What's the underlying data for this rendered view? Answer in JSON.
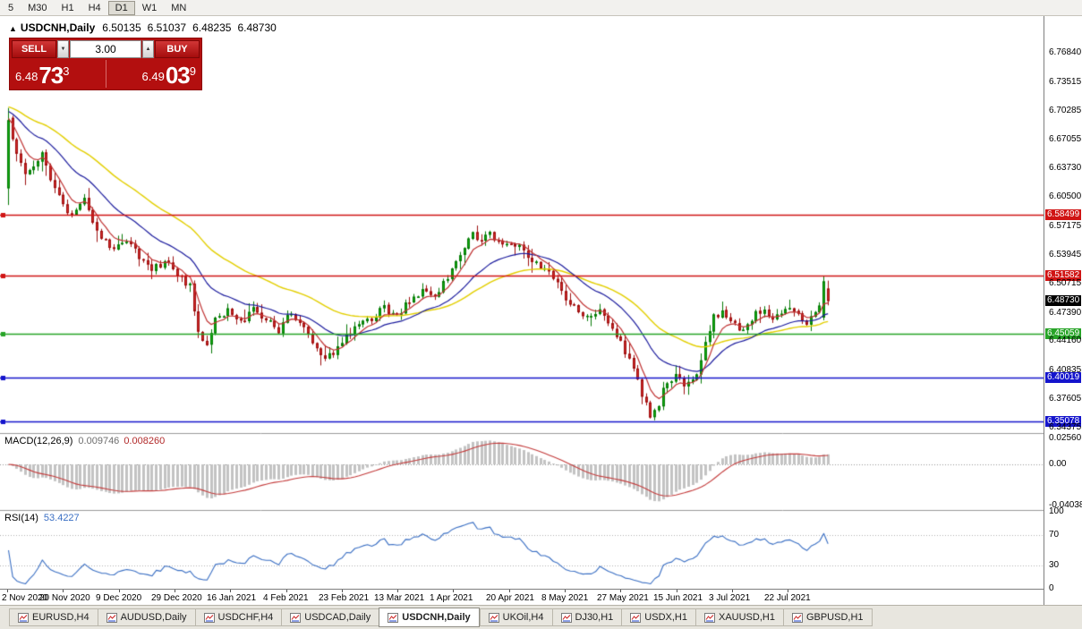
{
  "toolbar": {
    "timeframes": [
      "5",
      "M30",
      "H1",
      "H4",
      "D1",
      "W1",
      "MN"
    ],
    "active": "D1"
  },
  "chart": {
    "title": "USDCNH,Daily",
    "ohlc": {
      "open": "6.50135",
      "high": "6.51037",
      "low": "6.48235",
      "close": "6.48730"
    }
  },
  "icons": {
    "collapse": "▲",
    "volume_down": "▼",
    "volume_up": "▲"
  },
  "trade_widget": {
    "sell_label": "SELL",
    "buy_label": "BUY",
    "volume": "3.00",
    "sell_price": {
      "prefix": "6.48",
      "big": "73",
      "sup": "3"
    },
    "buy_price": {
      "prefix": "6.49",
      "big": "03",
      "sup": "9"
    }
  },
  "price_axis": {
    "labels": [
      {
        "text": "6.76840",
        "price": 6.7684,
        "style": "normal"
      },
      {
        "text": "6.73515",
        "price": 6.73515,
        "style": "normal"
      },
      {
        "text": "6.70285",
        "price": 6.70285,
        "style": "normal"
      },
      {
        "text": "6.67055",
        "price": 6.67055,
        "style": "normal"
      },
      {
        "text": "6.63730",
        "price": 6.6373,
        "style": "normal"
      },
      {
        "text": "6.60500",
        "price": 6.605,
        "style": "normal"
      },
      {
        "text": "6.58499",
        "price": 6.58499,
        "style": "red"
      },
      {
        "text": "6.57175",
        "price": 6.57175,
        "style": "normal"
      },
      {
        "text": "6.53945",
        "price": 6.53945,
        "style": "normal"
      },
      {
        "text": "6.51582",
        "price": 6.51582,
        "style": "red"
      },
      {
        "text": "6.50715",
        "price": 6.50715,
        "style": "normal"
      },
      {
        "text": "6.48730",
        "price": 6.4873,
        "style": "current"
      },
      {
        "text": "6.47390",
        "price": 6.4739,
        "style": "normal"
      },
      {
        "text": "6.45059",
        "price": 6.45059,
        "style": "green"
      },
      {
        "text": "6.44160",
        "price": 6.4416,
        "style": "normal"
      },
      {
        "text": "6.40835",
        "price": 6.40835,
        "style": "normal"
      },
      {
        "text": "6.40019",
        "price": 6.40019,
        "style": "blue"
      },
      {
        "text": "6.37605",
        "price": 6.37605,
        "style": "normal"
      },
      {
        "text": "6.35078",
        "price": 6.35078,
        "style": "blue"
      },
      {
        "text": "6.34375",
        "price": 6.34375,
        "style": "normal"
      }
    ]
  },
  "horizontal_lines": [
    {
      "price": 6.58499,
      "color": "red"
    },
    {
      "price": 6.51582,
      "color": "red"
    },
    {
      "price": 6.45059,
      "color": "green"
    },
    {
      "price": 6.40019,
      "color": "blue"
    },
    {
      "price": 6.35078,
      "color": "blue"
    }
  ],
  "macd": {
    "label": "MACD(12,26,9)",
    "value_main": "0.009746",
    "value_signal": "0.008260",
    "axis_labels": [
      {
        "text": "0.02560",
        "value": 0.0256
      },
      {
        "text": "0.00",
        "value": 0
      },
      {
        "text": "-0.04038",
        "value": -0.04038
      }
    ]
  },
  "rsi": {
    "label": "RSI(14)",
    "value": "53.4227",
    "levels": [
      70,
      30
    ],
    "axis_labels": [
      {
        "text": "100",
        "value": 100
      },
      {
        "text": "70",
        "value": 70
      },
      {
        "text": "30",
        "value": 30
      },
      {
        "text": "0",
        "value": 0
      }
    ]
  },
  "date_axis": {
    "labels": [
      "2 Nov 2020",
      "20 Nov 2020",
      "9 Dec 2020",
      "29 Dec 2020",
      "16 Jan 2021",
      "4 Feb 2021",
      "23 Feb 2021",
      "13 Mar 2021",
      "1 Apr 2021",
      "20 Apr 2021",
      "8 May 2021",
      "27 May 2021",
      "15 Jun 2021",
      "3 Jul 2021",
      "22 Jul 2021"
    ]
  },
  "tabs": {
    "items": [
      "EURUSD,H4",
      "AUDUSD,Daily",
      "USDCHF,H4",
      "USDCAD,Daily",
      "USDCNH,Daily",
      "UKOil,H4",
      "DJ30,H1",
      "USDX,H1",
      "XAUUSD,H1",
      "GBPUSD,H1"
    ],
    "active": "USDCNH,Daily"
  },
  "colors": {
    "up": "#0faf0f",
    "up_border": "#067a06",
    "down": "#d22a2a",
    "down_border": "#9e0f0f",
    "ma_fast": "#c03232",
    "ma_mid": "#1c1c9e",
    "ma_slow": "#e3cf00",
    "line_red": "#d01414",
    "line_green": "#27a427",
    "line_blue": "#1414cc",
    "macd_hist": "#c3c3c3",
    "macd_signal": "#c43b3b",
    "rsi_line": "#3a6fc4",
    "widget_red": "#b30f0f"
  },
  "chart_data": {
    "type": "candlestick",
    "symbol": "USDCNH",
    "timeframe": "Daily",
    "bars": 195,
    "visible_range": {
      "price_top": 6.81,
      "price_bottom": 6.338
    },
    "last_bar": {
      "o": 6.50135,
      "h": 6.51037,
      "l": 6.48235,
      "c": 6.4873
    },
    "prev_bar": {
      "o": 6.4685,
      "h": 6.51582,
      "l": 6.4655,
      "c": 6.5095
    },
    "price_anchors": [
      [
        0,
        6.692
      ],
      [
        2,
        6.658
      ],
      [
        4,
        6.628
      ],
      [
        6,
        6.642
      ],
      [
        8,
        6.655
      ],
      [
        10,
        6.628
      ],
      [
        12,
        6.605
      ],
      [
        14,
        6.585
      ],
      [
        16,
        6.592
      ],
      [
        18,
        6.604
      ],
      [
        20,
        6.578
      ],
      [
        22,
        6.558
      ],
      [
        25,
        6.547
      ],
      [
        28,
        6.554
      ],
      [
        31,
        6.538
      ],
      [
        34,
        6.522
      ],
      [
        37,
        6.532
      ],
      [
        40,
        6.517
      ],
      [
        43,
        6.503
      ],
      [
        45,
        6.452
      ],
      [
        47,
        6.441
      ],
      [
        49,
        6.464
      ],
      [
        52,
        6.478
      ],
      [
        55,
        6.462
      ],
      [
        58,
        6.476
      ],
      [
        61,
        6.466
      ],
      [
        64,
        6.455
      ],
      [
        67,
        6.476
      ],
      [
        70,
        6.457
      ],
      [
        73,
        6.431
      ],
      [
        75,
        6.419
      ],
      [
        77,
        6.429
      ],
      [
        80,
        6.449
      ],
      [
        83,
        6.459
      ],
      [
        86,
        6.466
      ],
      [
        89,
        6.479
      ],
      [
        92,
        6.471
      ],
      [
        95,
        6.489
      ],
      [
        98,
        6.498
      ],
      [
        101,
        6.491
      ],
      [
        104,
        6.516
      ],
      [
        107,
        6.542
      ],
      [
        110,
        6.568
      ],
      [
        112,
        6.552
      ],
      [
        114,
        6.565
      ],
      [
        117,
        6.548
      ],
      [
        119,
        6.556
      ],
      [
        122,
        6.546
      ],
      [
        125,
        6.528
      ],
      [
        128,
        6.519
      ],
      [
        131,
        6.499
      ],
      [
        134,
        6.479
      ],
      [
        137,
        6.467
      ],
      [
        140,
        6.479
      ],
      [
        143,
        6.456
      ],
      [
        146,
        6.43
      ],
      [
        148,
        6.413
      ],
      [
        150,
        6.381
      ],
      [
        152,
        6.359
      ],
      [
        154,
        6.372
      ],
      [
        156,
        6.397
      ],
      [
        158,
        6.401
      ],
      [
        160,
        6.391
      ],
      [
        163,
        6.401
      ],
      [
        165,
        6.438
      ],
      [
        167,
        6.468
      ],
      [
        169,
        6.477
      ],
      [
        171,
        6.466
      ],
      [
        173,
        6.453
      ],
      [
        175,
        6.463
      ],
      [
        177,
        6.472
      ],
      [
        179,
        6.479
      ],
      [
        181,
        6.466
      ],
      [
        183,
        6.473
      ],
      [
        185,
        6.479
      ],
      [
        187,
        6.469
      ],
      [
        189,
        6.464
      ],
      [
        192,
        6.478
      ]
    ]
  }
}
